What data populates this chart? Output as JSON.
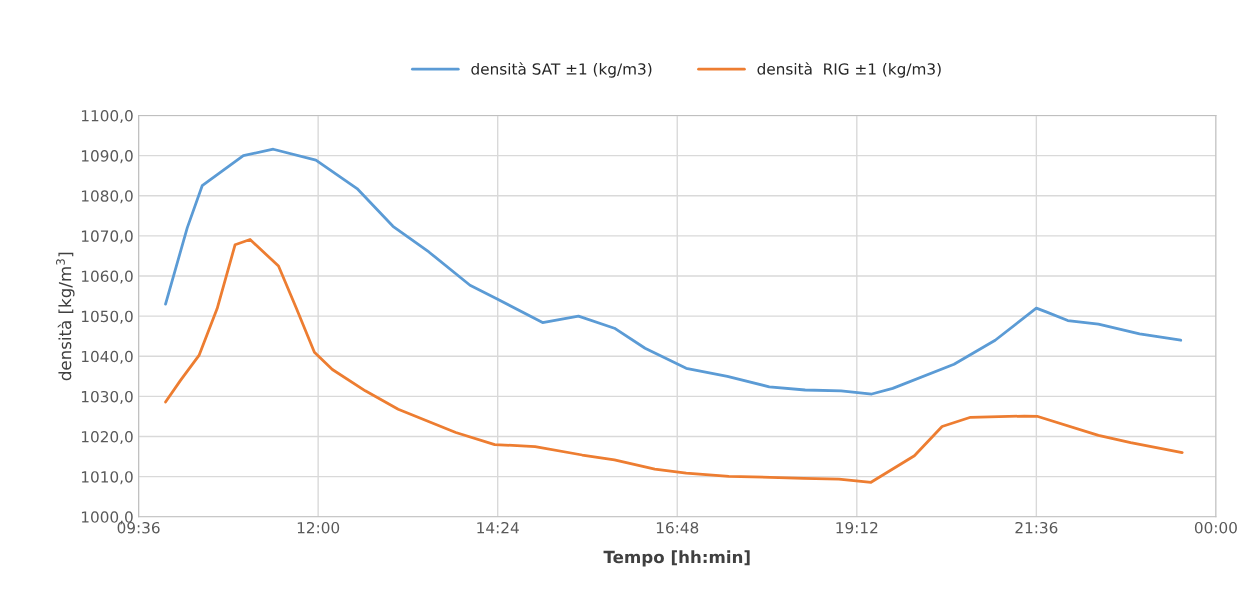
{
  "chart_data": {
    "type": "line",
    "xlabel": "Tempo [hh:min]",
    "ylabel": "densità [kg/m$^{3}$]",
    "xlim": [
      9.6,
      24
    ],
    "ylim": [
      1000,
      1100
    ],
    "xticks": [
      {
        "value": 9.6,
        "label": "09:36"
      },
      {
        "value": 12,
        "label": "12:00"
      },
      {
        "value": 14.4,
        "label": "14:24"
      },
      {
        "value": 16.8,
        "label": "16:48"
      },
      {
        "value": 19.2,
        "label": "19:12"
      },
      {
        "value": 21.6,
        "label": "21:36"
      },
      {
        "value": 24,
        "label": "00:00"
      }
    ],
    "yticks": [
      {
        "value": 1000,
        "label": "1000,0"
      },
      {
        "value": 1010,
        "label": "1010,0"
      },
      {
        "value": 1020,
        "label": "1020,0"
      },
      {
        "value": 1030,
        "label": "1030,0"
      },
      {
        "value": 1040,
        "label": "1040,0"
      },
      {
        "value": 1050,
        "label": "1050,0"
      },
      {
        "value": 1060,
        "label": "1060,0"
      },
      {
        "value": 1070,
        "label": "1070,0"
      },
      {
        "value": 1080,
        "label": "1080,0"
      },
      {
        "value": 1090,
        "label": "1090,0"
      },
      {
        "value": 1100,
        "label": "1100,0"
      }
    ],
    "grid": true,
    "legend": "top",
    "marker": "none",
    "line_style": "solid",
    "series": [
      {
        "name": "densità SAT ±1 (kg/m3)",
        "color": "#5b9bd5",
        "x": [
          9.96,
          10.25,
          10.45,
          11.0,
          11.4,
          11.97,
          12.52,
          13.0,
          13.48,
          14.03,
          14.38,
          15.0,
          15.48,
          15.96,
          16.37,
          16.92,
          17.47,
          18.03,
          18.51,
          18.99,
          19.4,
          19.68,
          20.5,
          21.05,
          21.6,
          21.74,
          22.02,
          22.43,
          22.98,
          23.53
        ],
        "values": [
          1053,
          1072,
          1082.5,
          1090,
          1091.6,
          1088.9,
          1081.8,
          1072.4,
          1066,
          1057.7,
          1054.4,
          1048.4,
          1050,
          1047,
          1042,
          1037,
          1035,
          1032.4,
          1031.6,
          1031.4,
          1030.6,
          1032,
          1038,
          1044,
          1052,
          1051,
          1048.9,
          1048,
          1045.6,
          1044
        ]
      },
      {
        "name": "densità  RIG ±1 (kg/m3)",
        "color": "#ed7d31",
        "x": [
          9.96,
          10.16,
          10.41,
          10.65,
          10.89,
          11.09,
          11.47,
          11.71,
          11.95,
          12.19,
          12.63,
          13.07,
          13.84,
          14.36,
          14.9,
          15.53,
          15.96,
          16.5,
          16.92,
          17.49,
          18.49,
          18.96,
          19.39,
          19.97,
          20.34,
          20.72,
          21.44,
          21.62,
          22.43,
          22.86,
          23.55
        ],
        "values": [
          1028.6,
          1034,
          1040.3,
          1051.9,
          1067.8,
          1069.1,
          1062.5,
          1051.9,
          1041,
          1036.7,
          1031.4,
          1026.8,
          1021,
          1018,
          1017.5,
          1015.4,
          1014.2,
          1011.9,
          1010.9,
          1010.1,
          1009.6,
          1009.4,
          1008.6,
          1015.2,
          1022.5,
          1024.8,
          1025.1,
          1025,
          1020.3,
          1018.5,
          1016
        ]
      }
    ]
  }
}
